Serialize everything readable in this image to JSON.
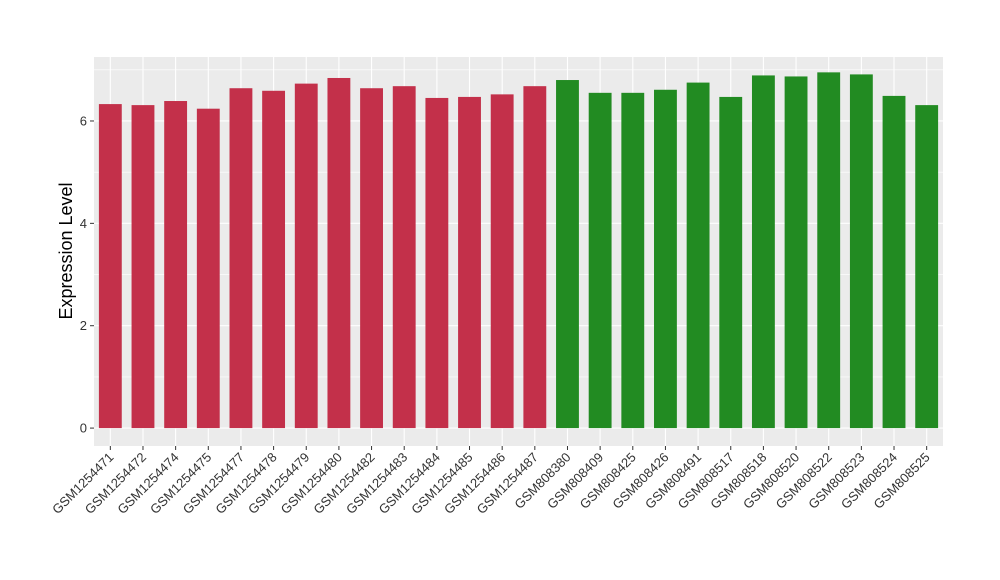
{
  "chart_data": {
    "type": "bar",
    "xlabel": "",
    "ylabel": "Expression Level",
    "ylim": [
      -0.35,
      7.25
    ],
    "yticks": [
      0,
      2,
      4,
      6
    ],
    "ytick_labels": [
      "0",
      "2",
      "4",
      "6"
    ],
    "grid": true,
    "legend": "none",
    "categories": [
      "GSM1254471",
      "GSM1254472",
      "GSM1254474",
      "GSM1254475",
      "GSM1254477",
      "GSM1254478",
      "GSM1254479",
      "GSM1254480",
      "GSM1254482",
      "GSM1254483",
      "GSM1254484",
      "GSM1254485",
      "GSM1254486",
      "GSM1254487",
      "GSM808380",
      "GSM808409",
      "GSM808425",
      "GSM808426",
      "GSM808491",
      "GSM808517",
      "GSM808518",
      "GSM808520",
      "GSM808522",
      "GSM808523",
      "GSM808524",
      "GSM808525"
    ],
    "values": [
      6.33,
      6.31,
      6.39,
      6.24,
      6.64,
      6.59,
      6.73,
      6.84,
      6.64,
      6.68,
      6.45,
      6.47,
      6.52,
      6.68,
      6.8,
      6.55,
      6.55,
      6.61,
      6.75,
      6.47,
      6.89,
      6.87,
      6.95,
      6.91,
      6.49,
      6.31
    ],
    "colors": [
      "#C3304A",
      "#C3304A",
      "#C3304A",
      "#C3304A",
      "#C3304A",
      "#C3304A",
      "#C3304A",
      "#C3304A",
      "#C3304A",
      "#C3304A",
      "#C3304A",
      "#C3304A",
      "#C3304A",
      "#C3304A",
      "#228B22",
      "#228B22",
      "#228B22",
      "#228B22",
      "#228B22",
      "#228B22",
      "#228B22",
      "#228B22",
      "#228B22",
      "#228B22",
      "#228B22",
      "#228B22"
    ],
    "panel_background": "#EBEBEB",
    "gridline_color": "#FFFFFF"
  }
}
